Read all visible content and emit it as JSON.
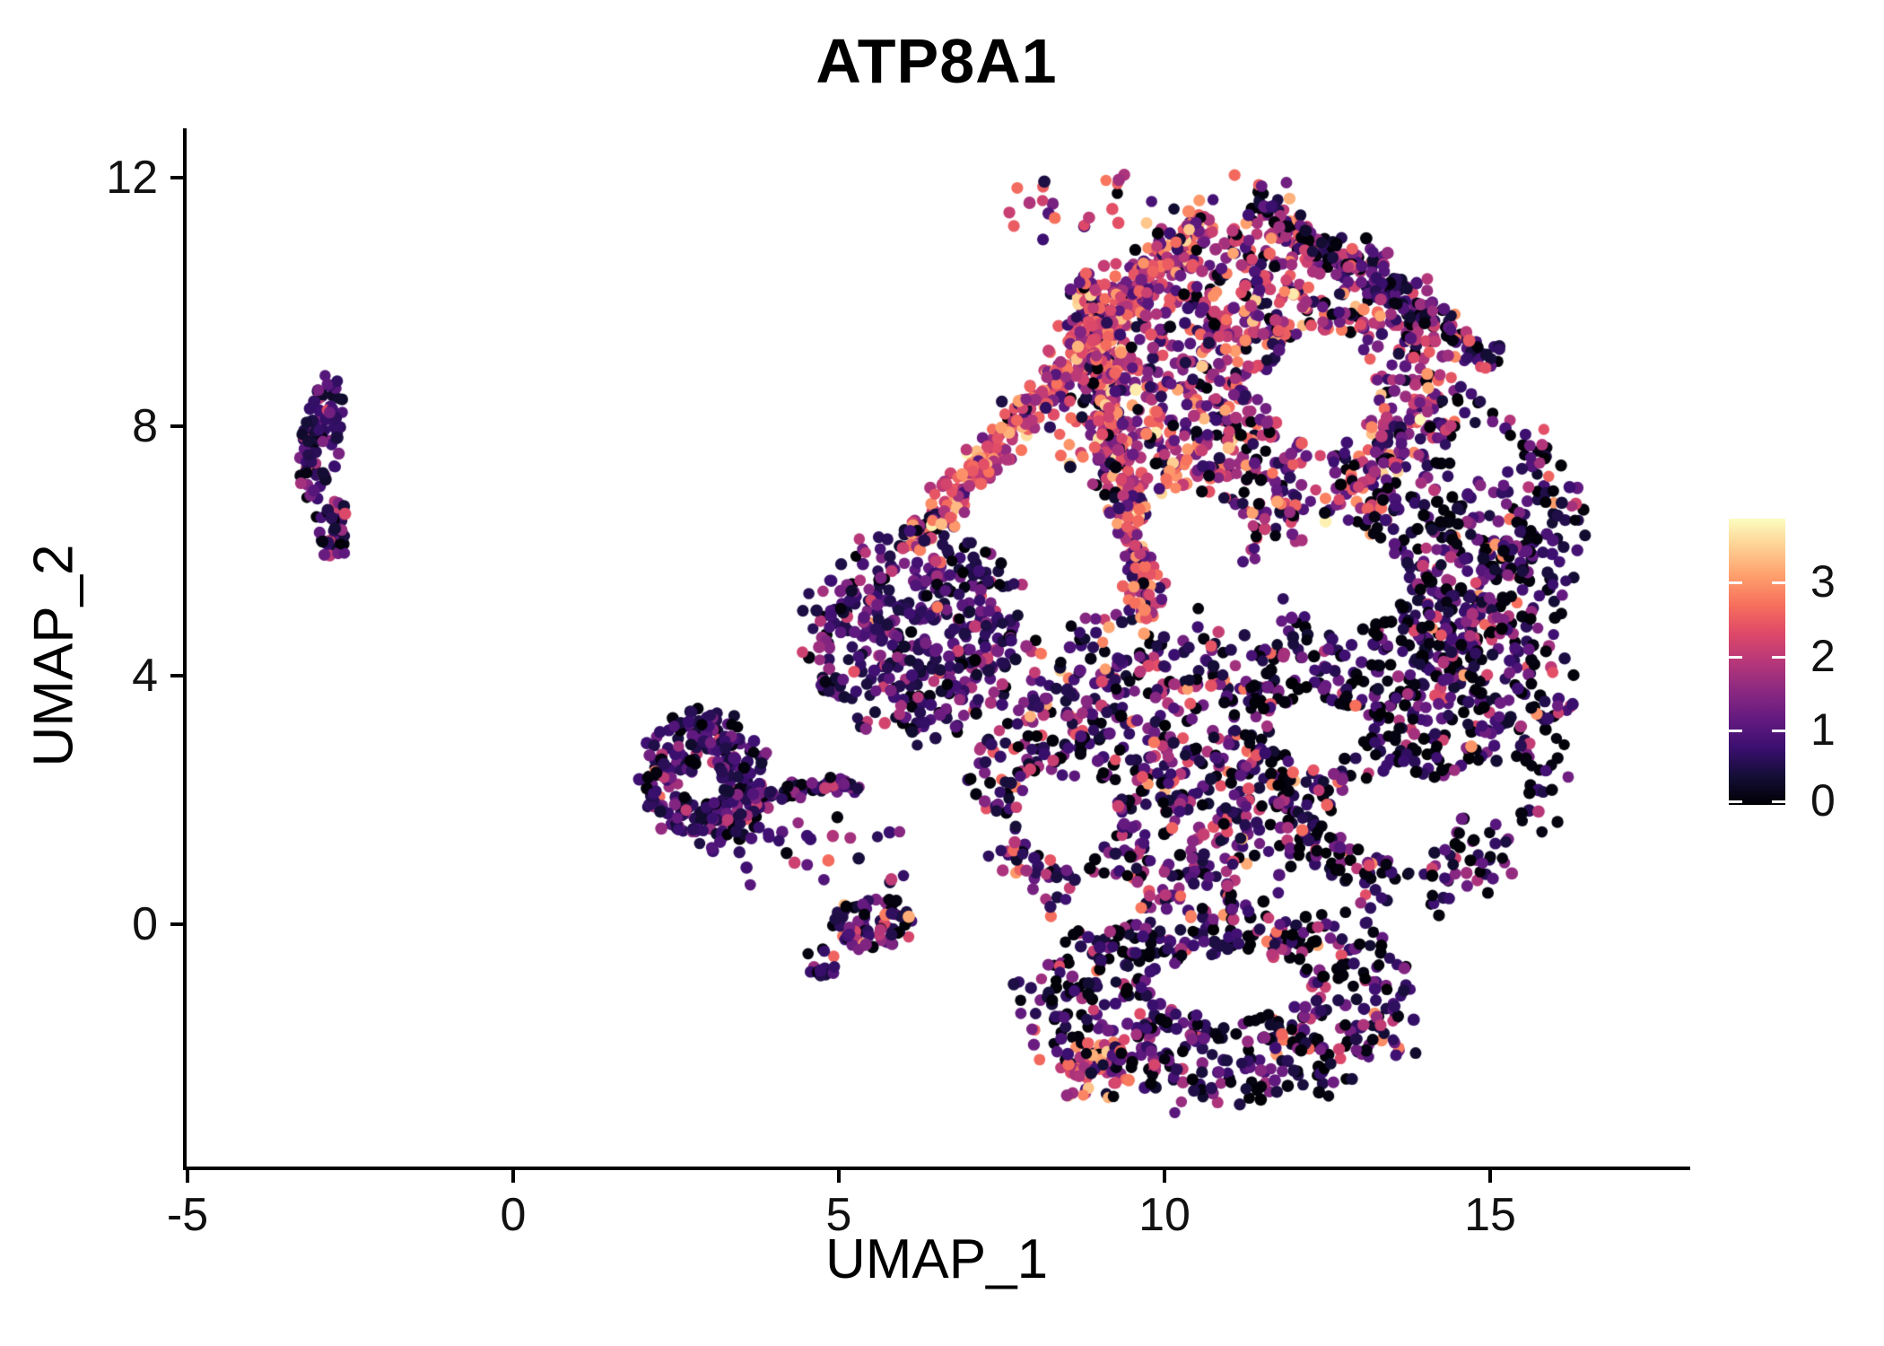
{
  "title": "ATP8A1",
  "axes": {
    "x": {
      "label": "UMAP_1",
      "ticks": [
        -5,
        0,
        5,
        10,
        15
      ]
    },
    "y": {
      "label": "UMAP_2",
      "ticks": [
        0,
        4,
        8,
        12
      ]
    }
  },
  "colorbar": {
    "tick_labels": [
      0,
      1,
      2,
      3
    ],
    "vmax": 3.86,
    "palette": "magma",
    "stops": [
      [
        0.0,
        "#000004"
      ],
      [
        0.1,
        "#140e36"
      ],
      [
        0.2,
        "#3b0f70"
      ],
      [
        0.3,
        "#641a80"
      ],
      [
        0.4,
        "#8c2981"
      ],
      [
        0.5,
        "#b73779"
      ],
      [
        0.6,
        "#de4968"
      ],
      [
        0.7,
        "#f7705c"
      ],
      [
        0.8,
        "#fe9f6d"
      ],
      [
        0.9,
        "#fecf92"
      ],
      [
        1.0,
        "#fcfdbf"
      ]
    ]
  },
  "chart_data": {
    "type": "scatter",
    "title": "ATP8A1",
    "xlabel": "UMAP_1",
    "ylabel": "UMAP_2",
    "x_ticks": [
      -5,
      0,
      5,
      10,
      15
    ],
    "y_ticks": [
      0,
      4,
      8,
      12
    ],
    "x_range": [
      -5.05,
      18.1
    ],
    "y_range": [
      -3.92,
      12.8
    ],
    "legend": "expression colorbar 0-3, max 3.86, magma palette, right side",
    "grid": false,
    "point_radius_px": 6.5,
    "seed": 911,
    "expression_bins": [
      [
        0.0,
        0.12
      ],
      [
        0.3,
        0.85
      ],
      [
        0.85,
        1.5
      ],
      [
        1.6,
        2.15
      ],
      [
        2.15,
        2.65
      ],
      [
        2.65,
        3.15
      ],
      [
        3.15,
        3.55
      ],
      [
        3.55,
        3.82
      ]
    ],
    "clusters": [
      {
        "name": "left-strip-upper",
        "shape": "ellipse",
        "cx": -2.95,
        "cy": 7.85,
        "rx": 0.3,
        "ry": 1.0,
        "rot": -8,
        "n": 95,
        "bias": 0.55,
        "weights": [
          0.1,
          0.52,
          0.3,
          0.06,
          0.02,
          0,
          0,
          0
        ]
      },
      {
        "name": "left-strip-lower",
        "shape": "ellipse",
        "cx": -2.78,
        "cy": 6.35,
        "rx": 0.25,
        "ry": 0.5,
        "rot": 0,
        "n": 40,
        "bias": 0.55,
        "weights": [
          0.06,
          0.3,
          0.33,
          0.18,
          0.13,
          0,
          0,
          0
        ]
      },
      {
        "name": "midleft-blob",
        "shape": "ellipse",
        "cx": 2.95,
        "cy": 2.3,
        "rx": 0.95,
        "ry": 1.05,
        "rot": 15,
        "n": 300,
        "bias": 0.5,
        "weights": [
          0.15,
          0.5,
          0.24,
          0.08,
          0.02,
          0.01,
          0,
          0
        ]
      },
      {
        "name": "midleft-trail",
        "shape": "band",
        "x1": 3.3,
        "y1": 2.05,
        "x2": 5.35,
        "y2": 2.25,
        "w": 0.18,
        "n": 65,
        "weights": [
          0.12,
          0.52,
          0.26,
          0.08,
          0.02,
          0,
          0,
          0
        ]
      },
      {
        "name": "midleft-sparse",
        "shape": "box",
        "x1": 3.4,
        "y1": 0.6,
        "x2": 6.0,
        "y2": 1.9,
        "n": 30,
        "weights": [
          0.15,
          0.45,
          0.25,
          0.1,
          0.04,
          0.01,
          0,
          0
        ]
      },
      {
        "name": "small-blob",
        "shape": "ellipse",
        "cx": 5.55,
        "cy": 0.0,
        "rx": 0.6,
        "ry": 0.42,
        "rot": 0,
        "n": 80,
        "bias": 0.5,
        "weights": [
          0.27,
          0.28,
          0.24,
          0.12,
          0.05,
          0.02,
          0.02,
          0
        ]
      },
      {
        "name": "tiny-blob",
        "shape": "ellipse",
        "cx": 4.75,
        "cy": -0.62,
        "rx": 0.25,
        "ry": 0.3,
        "rot": 0,
        "n": 16,
        "bias": 0.55,
        "weights": [
          0.1,
          0.45,
          0.25,
          0.15,
          0.05,
          0,
          0,
          0
        ]
      },
      {
        "name": "hot-upperleft-edge",
        "shape": "band",
        "x1": 6.1,
        "y1": 6.1,
        "x2": 10.6,
        "y2": 11.4,
        "w": 0.45,
        "n": 380,
        "weights": [
          0.03,
          0.07,
          0.12,
          0.26,
          0.26,
          0.17,
          0.07,
          0.02
        ]
      },
      {
        "name": "hot-streak",
        "shape": "band",
        "x1": 8.75,
        "y1": 10.5,
        "x2": 9.75,
        "y2": 4.9,
        "w": 0.4,
        "n": 300,
        "weights": [
          0.04,
          0.08,
          0.13,
          0.24,
          0.25,
          0.17,
          0.07,
          0.02
        ]
      },
      {
        "name": "top-lobe",
        "shape": "ellipse",
        "cx": 11.4,
        "cy": 8.7,
        "rx": 3.0,
        "ry": 2.55,
        "rot": 0,
        "n": 1150,
        "bias": 0.52,
        "weights": [
          0.09,
          0.16,
          0.22,
          0.27,
          0.15,
          0.08,
          0.025,
          0.005
        ]
      },
      {
        "name": "ne-boundary",
        "shape": "band",
        "x1": 11.3,
        "y1": 11.7,
        "x2": 15.1,
        "y2": 9.0,
        "w": 0.35,
        "n": 160,
        "weights": [
          0.3,
          0.3,
          0.22,
          0.12,
          0.04,
          0.02,
          0,
          0
        ]
      },
      {
        "name": "right-upper",
        "shape": "ellipse",
        "cx": 14.6,
        "cy": 6.3,
        "rx": 1.75,
        "ry": 2.1,
        "rot": 0,
        "n": 430,
        "bias": 0.52,
        "weights": [
          0.3,
          0.33,
          0.21,
          0.11,
          0.03,
          0.02,
          0,
          0
        ]
      },
      {
        "name": "right-body",
        "shape": "ellipse",
        "cx": 13.7,
        "cy": 3.1,
        "rx": 2.5,
        "ry": 2.7,
        "rot": 0,
        "n": 800,
        "bias": 0.52,
        "weights": [
          0.38,
          0.31,
          0.18,
          0.09,
          0.025,
          0.015,
          0,
          0
        ]
      },
      {
        "name": "left-wing",
        "shape": "ellipse",
        "cx": 6.15,
        "cy": 4.75,
        "rx": 1.6,
        "ry": 1.65,
        "rot": -20,
        "n": 430,
        "bias": 0.52,
        "weights": [
          0.14,
          0.45,
          0.26,
          0.11,
          0.03,
          0.01,
          0,
          0
        ]
      },
      {
        "name": "center-body",
        "shape": "ellipse",
        "cx": 9.6,
        "cy": 2.4,
        "rx": 2.4,
        "ry": 2.5,
        "rot": 0,
        "n": 720,
        "bias": 0.52,
        "weights": [
          0.22,
          0.32,
          0.22,
          0.15,
          0.055,
          0.03,
          0.005,
          0
        ]
      },
      {
        "name": "bottom-lobe",
        "shape": "ellipse",
        "cx": 10.9,
        "cy": -1.25,
        "rx": 2.9,
        "ry": 1.6,
        "rot": 0,
        "n": 620,
        "bias": 0.52,
        "weights": [
          0.34,
          0.32,
          0.19,
          0.1,
          0.035,
          0.015,
          0,
          0
        ]
      },
      {
        "name": "bottom-hotspot",
        "shape": "ellipse",
        "cx": 8.9,
        "cy": -2.35,
        "rx": 0.55,
        "ry": 0.5,
        "rot": 0,
        "n": 55,
        "bias": 0.55,
        "weights": [
          0.05,
          0.1,
          0.15,
          0.28,
          0.25,
          0.13,
          0.04,
          0
        ]
      },
      {
        "name": "top-fringe",
        "shape": "box",
        "x1": 7.6,
        "y1": 11.0,
        "x2": 12.3,
        "y2": 12.1,
        "n": 40,
        "weights": [
          0.09,
          0.16,
          0.22,
          0.27,
          0.15,
          0.08,
          0.025,
          0.005
        ]
      }
    ],
    "voids": [
      {
        "cx": 12.4,
        "cy": 8.6,
        "rx": 0.85,
        "ry": 0.9
      },
      {
        "cx": 12.75,
        "cy": 5.55,
        "rx": 0.9,
        "ry": 0.8
      },
      {
        "cx": 13.6,
        "cy": 1.75,
        "rx": 0.95,
        "ry": 0.7
      },
      {
        "cx": 11.0,
        "cy": -1.0,
        "rx": 1.25,
        "ry": 0.5
      },
      {
        "cx": 8.5,
        "cy": 1.7,
        "rx": 0.8,
        "ry": 0.65
      },
      {
        "cx": 12.35,
        "cy": 3.1,
        "rx": 0.7,
        "ry": 0.5
      },
      {
        "cx": 10.45,
        "cy": 6.3,
        "rx": 0.8,
        "ry": 0.65
      },
      {
        "cx": 14.95,
        "cy": 2.1,
        "rx": 0.6,
        "ry": 0.5
      },
      {
        "cx": 9.05,
        "cy": 0.35,
        "rx": 0.55,
        "ry": 0.45
      },
      {
        "cx": 14.9,
        "cy": 7.6,
        "rx": 0.5,
        "ry": 0.45
      },
      {
        "cx": 2.9,
        "cy": 2.2,
        "rx": 0.32,
        "ry": 0.28
      }
    ]
  }
}
